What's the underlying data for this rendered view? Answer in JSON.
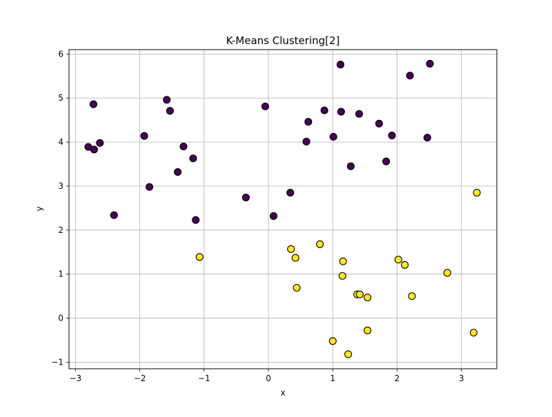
{
  "chart_data": {
    "type": "scatter",
    "title": "K-Means Clustering[2]",
    "xlabel": "x",
    "ylabel": "y",
    "xlim": [
      -3.1,
      3.55
    ],
    "ylim": [
      -1.15,
      6.1
    ],
    "xticks": [
      -3,
      -2,
      -1,
      0,
      1,
      2,
      3
    ],
    "yticks": [
      -1,
      0,
      1,
      2,
      3,
      4,
      5,
      6
    ],
    "grid": true,
    "legend": "none",
    "marker_edge_color": "#000000",
    "series": [
      {
        "color": "#440154",
        "points": [
          [
            -2.8,
            3.89
          ],
          [
            -2.71,
            3.83
          ],
          [
            -2.72,
            4.86
          ],
          [
            -2.62,
            3.98
          ],
          [
            -2.4,
            2.34
          ],
          [
            -1.93,
            4.14
          ],
          [
            -1.85,
            2.98
          ],
          [
            -1.58,
            4.96
          ],
          [
            -1.53,
            4.71
          ],
          [
            -1.41,
            3.32
          ],
          [
            -1.32,
            3.9
          ],
          [
            -1.17,
            3.63
          ],
          [
            -1.13,
            2.23
          ],
          [
            -0.35,
            2.74
          ],
          [
            -0.05,
            4.81
          ],
          [
            0.08,
            2.32
          ],
          [
            0.34,
            2.85
          ],
          [
            0.59,
            4.01
          ],
          [
            0.62,
            4.46
          ],
          [
            0.87,
            4.72
          ],
          [
            1.01,
            4.12
          ],
          [
            1.12,
            5.76
          ],
          [
            1.13,
            4.69
          ],
          [
            1.28,
            3.45
          ],
          [
            1.41,
            4.64
          ],
          [
            1.72,
            4.42
          ],
          [
            1.83,
            3.56
          ],
          [
            1.92,
            4.15
          ],
          [
            2.2,
            5.51
          ],
          [
            2.47,
            4.1
          ],
          [
            2.51,
            5.78
          ]
        ]
      },
      {
        "color": "#fde725",
        "points": [
          [
            -1.07,
            1.39
          ],
          [
            0.35,
            1.57
          ],
          [
            0.42,
            1.37
          ],
          [
            0.44,
            0.69
          ],
          [
            0.8,
            1.68
          ],
          [
            1.0,
            -0.52
          ],
          [
            1.15,
            0.96
          ],
          [
            1.16,
            1.29
          ],
          [
            1.24,
            -0.82
          ],
          [
            1.38,
            0.54
          ],
          [
            1.42,
            0.54
          ],
          [
            1.54,
            0.47
          ],
          [
            1.54,
            -0.28
          ],
          [
            2.02,
            1.33
          ],
          [
            2.12,
            1.21
          ],
          [
            2.23,
            0.5
          ],
          [
            2.78,
            1.03
          ],
          [
            3.19,
            -0.33
          ],
          [
            3.24,
            2.85
          ]
        ]
      }
    ]
  }
}
